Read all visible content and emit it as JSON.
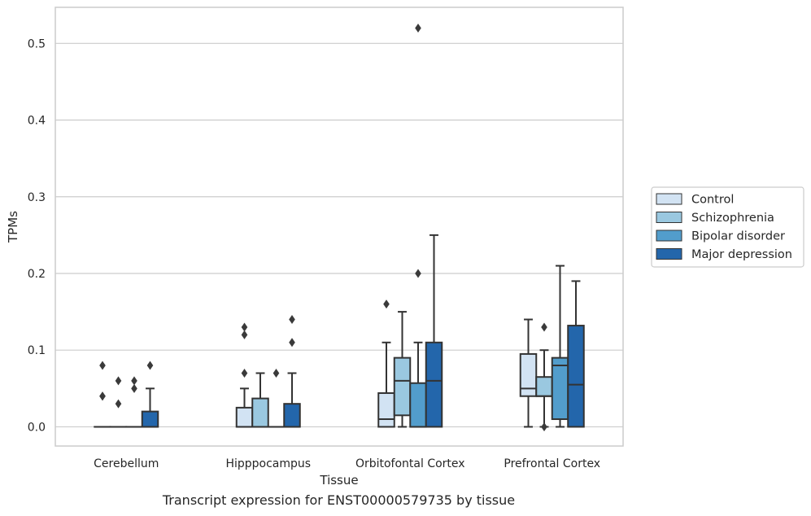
{
  "caption": "Transcript expression for ENST00000579735 by tissue",
  "colors": {
    "series": [
      "#d2e3f3",
      "#9ac8e0",
      "#529dcc",
      "#2366ab"
    ],
    "edge": "#333333",
    "grid": "#cccccc",
    "frame": "#cccccc"
  },
  "chart_data": {
    "type": "box",
    "xlabel": "Tissue",
    "ylabel": "TPMs",
    "ylim": [
      -0.025,
      0.547
    ],
    "yticks": [
      0.0,
      0.1,
      0.2,
      0.3,
      0.4,
      0.5
    ],
    "ytick_labels": [
      "0.0",
      "0.1",
      "0.2",
      "0.3",
      "0.4",
      "0.5"
    ],
    "grid": true,
    "legend_position": "outside-right",
    "categories": [
      "Cerebellum",
      "Hipppocampus",
      "Orbitofontal Cortex",
      "Prefrontal Cortex"
    ],
    "series": [
      {
        "name": "Control",
        "boxes": [
          {
            "q1": 0.0,
            "median": 0.0,
            "q3": 0.0,
            "whisker_low": 0.0,
            "whisker_high": 0.0,
            "outliers": [
              0.04,
              0.04,
              0.08
            ]
          },
          {
            "q1": 0.0,
            "median": 0.0,
            "q3": 0.025,
            "whisker_low": 0.0,
            "whisker_high": 0.05,
            "outliers": [
              0.07,
              0.12,
              0.13
            ]
          },
          {
            "q1": 0.0,
            "median": 0.01,
            "q3": 0.044,
            "whisker_low": 0.0,
            "whisker_high": 0.11,
            "outliers": [
              0.16
            ]
          },
          {
            "q1": 0.04,
            "median": 0.05,
            "q3": 0.095,
            "whisker_low": 0.0,
            "whisker_high": 0.14,
            "outliers": []
          }
        ]
      },
      {
        "name": "Schizophrenia",
        "boxes": [
          {
            "q1": 0.0,
            "median": 0.0,
            "q3": 0.0,
            "whisker_low": 0.0,
            "whisker_high": 0.0,
            "outliers": [
              0.03,
              0.06
            ]
          },
          {
            "q1": 0.0,
            "median": 0.0,
            "q3": 0.037,
            "whisker_low": 0.0,
            "whisker_high": 0.07,
            "outliers": []
          },
          {
            "q1": 0.015,
            "median": 0.06,
            "q3": 0.09,
            "whisker_low": 0.0,
            "whisker_high": 0.15,
            "outliers": []
          },
          {
            "q1": 0.04,
            "median": 0.04,
            "q3": 0.065,
            "whisker_low": 0.0,
            "whisker_high": 0.1,
            "outliers": [
              0.0,
              0.13
            ]
          }
        ]
      },
      {
        "name": "Bipolar disorder",
        "boxes": [
          {
            "q1": 0.0,
            "median": 0.0,
            "q3": 0.0,
            "whisker_low": 0.0,
            "whisker_high": 0.0,
            "outliers": [
              0.05,
              0.06
            ]
          },
          {
            "q1": 0.0,
            "median": 0.0,
            "q3": 0.0,
            "whisker_low": 0.0,
            "whisker_high": 0.0,
            "outliers": [
              0.07
            ]
          },
          {
            "q1": 0.0,
            "median": 0.0,
            "q3": 0.057,
            "whisker_low": 0.0,
            "whisker_high": 0.11,
            "outliers": [
              0.2,
              0.52
            ]
          },
          {
            "q1": 0.01,
            "median": 0.08,
            "q3": 0.09,
            "whisker_low": 0.0,
            "whisker_high": 0.21,
            "outliers": []
          }
        ]
      },
      {
        "name": "Major depression",
        "boxes": [
          {
            "q1": 0.0,
            "median": 0.0,
            "q3": 0.02,
            "whisker_low": 0.0,
            "whisker_high": 0.05,
            "outliers": [
              0.08
            ]
          },
          {
            "q1": 0.0,
            "median": 0.0,
            "q3": 0.03,
            "whisker_low": 0.0,
            "whisker_high": 0.07,
            "outliers": [
              0.11,
              0.14
            ]
          },
          {
            "q1": 0.0,
            "median": 0.06,
            "q3": 0.11,
            "whisker_low": 0.0,
            "whisker_high": 0.25,
            "outliers": []
          },
          {
            "q1": 0.0,
            "median": 0.055,
            "q3": 0.132,
            "whisker_low": 0.0,
            "whisker_high": 0.19,
            "outliers": []
          }
        ]
      }
    ]
  }
}
